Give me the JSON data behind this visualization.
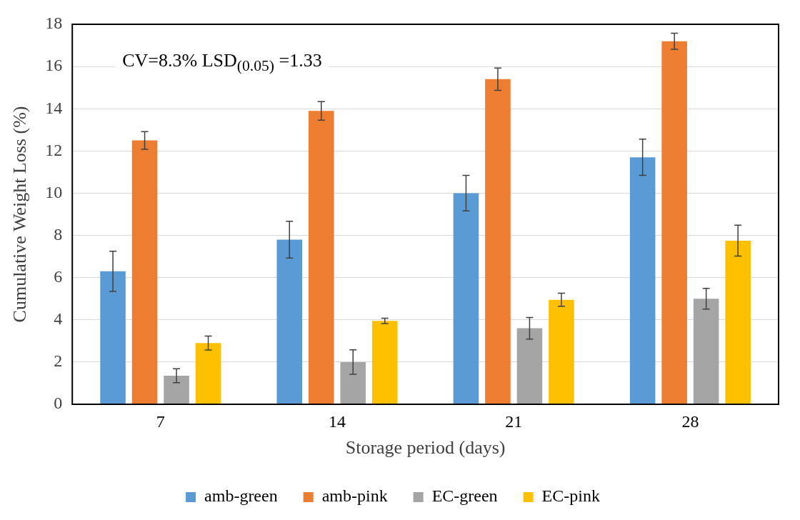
{
  "chart_data": {
    "type": "bar",
    "xlabel": "Storage period (days)",
    "ylabel": "Cumulative Weight Loss (%)",
    "categories": [
      "7",
      "14",
      "21",
      "28"
    ],
    "series": [
      {
        "name": "amb-green",
        "color": "#5b9bd5",
        "values": [
          6.3,
          7.8,
          10.0,
          11.7
        ],
        "errors": [
          0.95,
          0.87,
          0.84,
          0.86
        ]
      },
      {
        "name": "amb-pink",
        "color": "#ed7d31",
        "values": [
          12.5,
          13.9,
          15.4,
          17.2
        ],
        "errors": [
          0.42,
          0.44,
          0.53,
          0.38
        ]
      },
      {
        "name": "EC-green",
        "color": "#a5a5a5",
        "values": [
          1.35,
          2.0,
          3.6,
          5.0
        ],
        "errors": [
          0.33,
          0.58,
          0.51,
          0.49
        ]
      },
      {
        "name": "EC-pink",
        "color": "#ffc000",
        "values": [
          2.9,
          3.95,
          4.95,
          7.75
        ],
        "errors": [
          0.33,
          0.13,
          0.31,
          0.73
        ]
      }
    ],
    "ylim": [
      0,
      18
    ],
    "yticks": [
      0,
      2,
      4,
      6,
      8,
      10,
      12,
      14,
      16,
      18
    ],
    "grid": "y",
    "legend": "bottom",
    "annotations": [
      "CV=8.3% LSD$_{(0.05)}$ =1.33"
    ]
  }
}
